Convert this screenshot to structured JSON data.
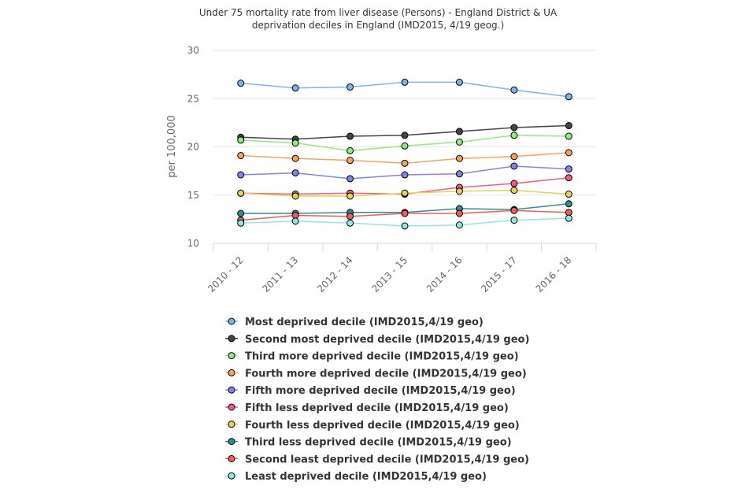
{
  "chart_data": {
    "type": "line",
    "title": [
      "Under 75 mortality rate from liver disease (Persons) - England District & UA",
      "deprivation deciles in England (IMD2015, 4/19 geog.)"
    ],
    "ylabel": "per 100,000",
    "ylim": [
      10,
      30
    ],
    "yticks": [
      10,
      15,
      20,
      25,
      30
    ],
    "categories": [
      "2010 - 12",
      "2011 - 13",
      "2012 - 14",
      "2013 - 15",
      "2014 - 16",
      "2015 - 17",
      "2016 - 18"
    ],
    "grid": "horizontal",
    "legend_position": "bottom",
    "series": [
      {
        "name": "Most deprived decile (IMD2015,4/19 geo)",
        "color": "#7cb5ec",
        "values": [
          26.6,
          26.1,
          26.2,
          26.7,
          26.7,
          25.9,
          25.2
        ]
      },
      {
        "name": "Second most deprived decile (IMD2015,4/19 geo)",
        "color": "#434348",
        "values": [
          21.0,
          20.8,
          21.1,
          21.2,
          21.6,
          22.0,
          22.2
        ]
      },
      {
        "name": "Third more deprived decile (IMD2015,4/19 geo)",
        "color": "#90ed7d",
        "values": [
          20.7,
          20.4,
          19.6,
          20.1,
          20.5,
          21.2,
          21.1
        ]
      },
      {
        "name": "Fourth more deprived decile (IMD2015,4/19 geo)",
        "color": "#f7a35c",
        "values": [
          19.1,
          18.8,
          18.6,
          18.3,
          18.8,
          19.0,
          19.4
        ]
      },
      {
        "name": "Fifth more deprived decile (IMD2015,4/19 geo)",
        "color": "#8085e9",
        "values": [
          17.1,
          17.3,
          16.7,
          17.1,
          17.2,
          18.0,
          17.7
        ]
      },
      {
        "name": "Fifth less deprived decile (IMD2015,4/19 geo)",
        "color": "#f15c80",
        "values": [
          15.2,
          15.1,
          15.2,
          15.1,
          15.8,
          16.2,
          16.8
        ]
      },
      {
        "name": "Fourth less deprived decile (IMD2015,4/19 geo)",
        "color": "#e4d354",
        "values": [
          15.2,
          14.9,
          14.9,
          15.2,
          15.4,
          15.5,
          15.1
        ]
      },
      {
        "name": "Third less deprived decile (IMD2015,4/19 geo)",
        "color": "#2b908f",
        "values": [
          13.1,
          13.1,
          13.2,
          13.2,
          13.6,
          13.5,
          14.1
        ]
      },
      {
        "name": "Second least deprived decile (IMD2015,4/19 geo)",
        "color": "#f45b5b",
        "values": [
          12.4,
          12.9,
          12.8,
          13.1,
          13.1,
          13.4,
          13.2
        ]
      },
      {
        "name": "Least deprived decile (IMD2015,4/19 geo)",
        "color": "#91e8e1",
        "values": [
          12.1,
          12.3,
          12.1,
          11.8,
          11.9,
          12.4,
          12.6
        ]
      }
    ]
  }
}
